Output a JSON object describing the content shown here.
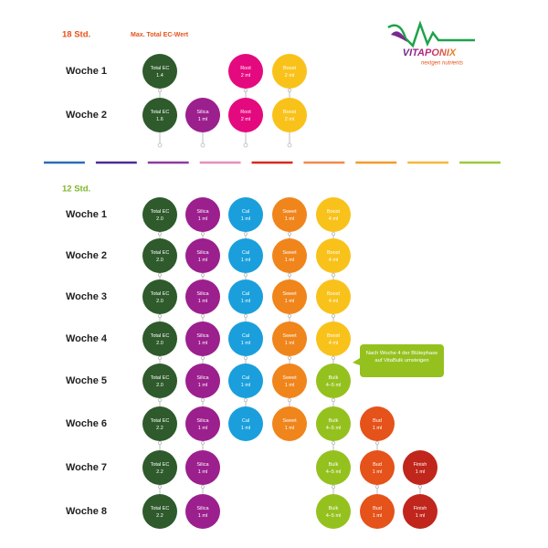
{
  "logo": {
    "brand": "VITAPONIX",
    "tagline": "nextgen nutrients"
  },
  "veg": {
    "title": "18 Std.",
    "note": "Max. Total EC-Wert",
    "weeks": [
      {
        "label": "Woche 1",
        "items": [
          {
            "name": "Total EC",
            "dose": "1.4",
            "color": "#2e5a2c"
          },
          null,
          {
            "name": "Root",
            "dose": "2 ml",
            "color": "#e5097f"
          },
          {
            "name": "Boost",
            "dose": "2 ml",
            "color": "#f9c21b"
          }
        ]
      },
      {
        "label": "Woche 2",
        "items": [
          {
            "name": "Total EC",
            "dose": "1.6",
            "color": "#2e5a2c"
          },
          {
            "name": "Silica",
            "dose": "1 ml",
            "color": "#9c1f8e"
          },
          {
            "name": "Root",
            "dose": "2 ml",
            "color": "#e5097f"
          },
          {
            "name": "Boost",
            "dose": "2 ml",
            "color": "#f9c21b"
          }
        ]
      }
    ]
  },
  "divider_colors": [
    "#2a6db5",
    "#4b2d8f",
    "#8a3ea0",
    "#e88fb8",
    "#d52b1e",
    "#f08a4b",
    "#f39a2c",
    "#f6b73c",
    "#9cc93c"
  ],
  "bloom": {
    "title": "12 Std.",
    "callout": "Nach Woche 4 der Blütephase auf VitaBulk umsteigen",
    "weeks": [
      {
        "label": "Woche 1",
        "items": [
          {
            "name": "Total EC",
            "dose": "2.0",
            "color": "#2e5a2c"
          },
          {
            "name": "Silica",
            "dose": "1 ml",
            "color": "#9c1f8e"
          },
          {
            "name": "Cal",
            "dose": "1 ml",
            "color": "#1a9fdc"
          },
          {
            "name": "Sweet",
            "dose": "1 ml",
            "color": "#f0851c"
          },
          {
            "name": "Boost",
            "dose": "4 ml",
            "color": "#f9c21b"
          },
          null,
          null
        ]
      },
      {
        "label": "Woche 2",
        "items": [
          {
            "name": "Total EC",
            "dose": "2.0",
            "color": "#2e5a2c"
          },
          {
            "name": "Silica",
            "dose": "1 ml",
            "color": "#9c1f8e"
          },
          {
            "name": "Cal",
            "dose": "1 ml",
            "color": "#1a9fdc"
          },
          {
            "name": "Sweet",
            "dose": "1 ml",
            "color": "#f0851c"
          },
          {
            "name": "Boost",
            "dose": "4 ml",
            "color": "#f9c21b"
          },
          null,
          null
        ]
      },
      {
        "label": "Woche 3",
        "items": [
          {
            "name": "Total EC",
            "dose": "2.0",
            "color": "#2e5a2c"
          },
          {
            "name": "Silica",
            "dose": "1 ml",
            "color": "#9c1f8e"
          },
          {
            "name": "Cal",
            "dose": "1 ml",
            "color": "#1a9fdc"
          },
          {
            "name": "Sweet",
            "dose": "1 ml",
            "color": "#f0851c"
          },
          {
            "name": "Boost",
            "dose": "4 ml",
            "color": "#f9c21b"
          },
          null,
          null
        ]
      },
      {
        "label": "Woche 4",
        "items": [
          {
            "name": "Total EC",
            "dose": "2.0",
            "color": "#2e5a2c"
          },
          {
            "name": "Silica",
            "dose": "1 ml",
            "color": "#9c1f8e"
          },
          {
            "name": "Cal",
            "dose": "1 ml",
            "color": "#1a9fdc"
          },
          {
            "name": "Sweet",
            "dose": "1 ml",
            "color": "#f0851c"
          },
          {
            "name": "Boost",
            "dose": "4 ml",
            "color": "#f9c21b"
          },
          null,
          null
        ]
      },
      {
        "label": "Woche 5",
        "items": [
          {
            "name": "Total EC",
            "dose": "2.0",
            "color": "#2e5a2c"
          },
          {
            "name": "Silica",
            "dose": "1 ml",
            "color": "#9c1f8e"
          },
          {
            "name": "Cal",
            "dose": "1 ml",
            "color": "#1a9fdc"
          },
          {
            "name": "Sweet",
            "dose": "1 ml",
            "color": "#f0851c"
          },
          {
            "name": "Bulk",
            "dose": "4–5 ml",
            "color": "#95c11f"
          },
          null,
          null
        ]
      },
      {
        "label": "Woche 6",
        "items": [
          {
            "name": "Total EC",
            "dose": "2.2",
            "color": "#2e5a2c"
          },
          {
            "name": "Silica",
            "dose": "1 ml",
            "color": "#9c1f8e"
          },
          {
            "name": "Cal",
            "dose": "1 ml",
            "color": "#1a9fdc"
          },
          {
            "name": "Sweet",
            "dose": "1 ml",
            "color": "#f0851c"
          },
          {
            "name": "Bulk",
            "dose": "4–5 ml",
            "color": "#95c11f"
          },
          {
            "name": "Bud",
            "dose": "1 ml",
            "color": "#e5521a"
          },
          null
        ]
      },
      {
        "label": "Woche 7",
        "items": [
          {
            "name": "Total EC",
            "dose": "2.2",
            "color": "#2e5a2c"
          },
          {
            "name": "Silica",
            "dose": "1 ml",
            "color": "#9c1f8e"
          },
          null,
          null,
          {
            "name": "Bulk",
            "dose": "4–5 ml",
            "color": "#95c11f"
          },
          {
            "name": "Bud",
            "dose": "1 ml",
            "color": "#e5521a"
          },
          {
            "name": "Finish",
            "dose": "1 ml",
            "color": "#c0261b"
          }
        ]
      },
      {
        "label": "Woche 8",
        "items": [
          {
            "name": "Total EC",
            "dose": "2.2",
            "color": "#2e5a2c"
          },
          {
            "name": "Silica",
            "dose": "1 ml",
            "color": "#9c1f8e"
          },
          null,
          null,
          {
            "name": "Bulk",
            "dose": "4–5 ml",
            "color": "#95c11f"
          },
          {
            "name": "Bud",
            "dose": "1 ml",
            "color": "#e5521a"
          },
          {
            "name": "Finish",
            "dose": "1 ml",
            "color": "#c0261b"
          }
        ]
      }
    ]
  }
}
